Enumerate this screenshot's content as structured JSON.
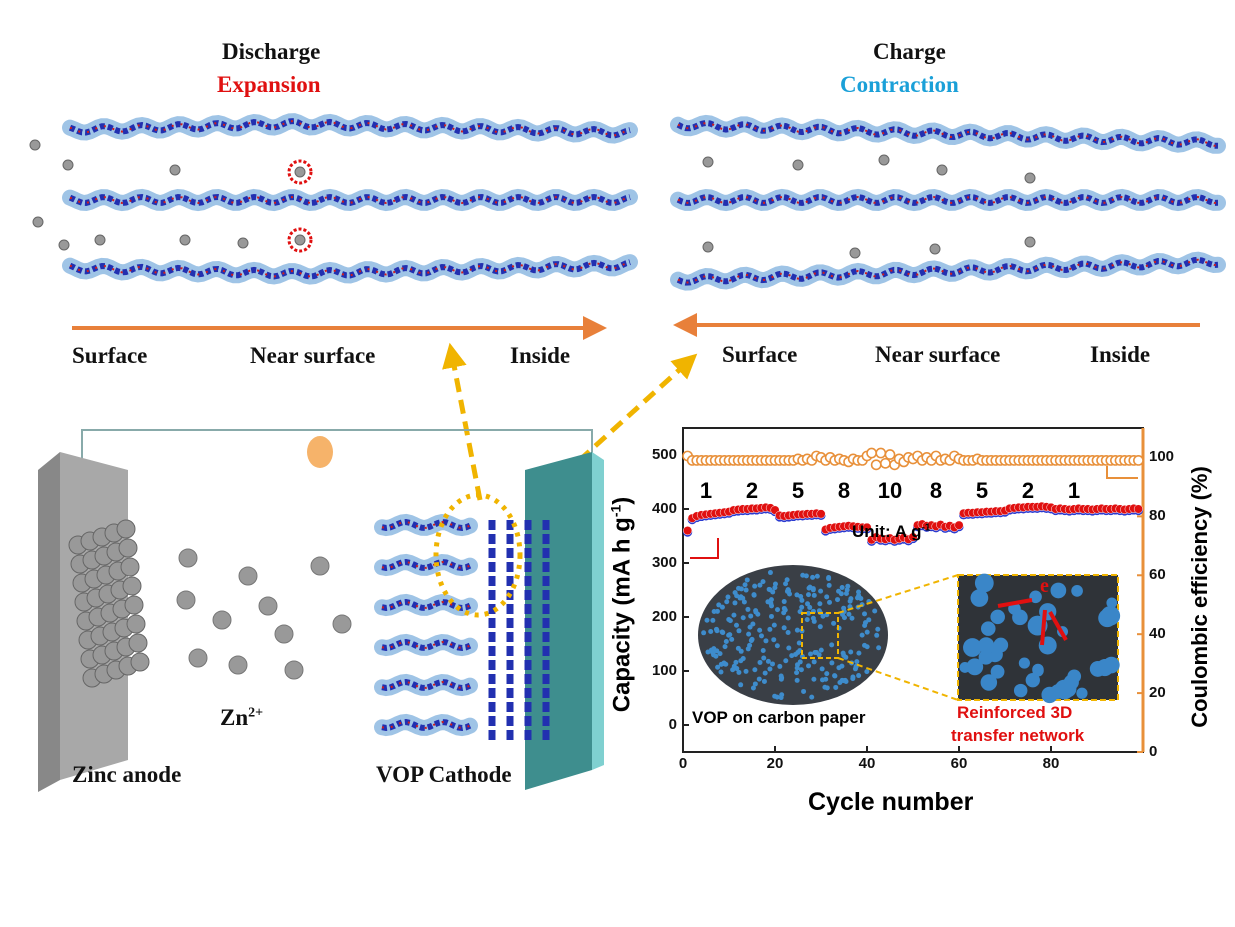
{
  "discharge_panel": {
    "title": "Discharge",
    "subtitle": "Expansion",
    "axis_labels": [
      "Surface",
      "Near surface",
      "Inside"
    ]
  },
  "charge_panel": {
    "title": "Charge",
    "subtitle": "Contraction",
    "axis_labels": [
      "Surface",
      "Near surface",
      "Inside"
    ]
  },
  "battery": {
    "ion_label": "Zn",
    "ion_charge": "2+",
    "anode_label": "Zinc anode",
    "cathode_label": "VOP Cathode"
  },
  "colors": {
    "expansion": "#e01010",
    "contraction": "#1aa0d8",
    "arrow": "#e8803a",
    "dashed": "#f0b400",
    "capacity": "#e01010",
    "efficiency": "#e8903a"
  },
  "chart_data": {
    "type": "scatter",
    "xlabel": "Cycle number",
    "ylabel": "Capacity (mA h g",
    "ylabel_sup": "-1",
    "ylabel_end": ")",
    "y2label": "Coulombic efficiency (%)",
    "xlim": [
      0,
      100
    ],
    "ylim": [
      -50,
      550
    ],
    "y2lim": [
      0,
      110
    ],
    "xticks": [
      0,
      20,
      40,
      60,
      80
    ],
    "yticks": [
      0,
      100,
      200,
      300,
      400,
      500
    ],
    "y2ticks": [
      0,
      20,
      40,
      60,
      80,
      100
    ],
    "rate_labels": [
      "1",
      "2",
      "5",
      "8",
      "10",
      "8",
      "5",
      "2",
      "1"
    ],
    "rate_label_cycles": [
      5,
      15,
      25,
      35,
      45,
      55,
      65,
      75,
      85
    ],
    "unit_label": "Unit: A g",
    "unit_sup": "-1",
    "inset_labels": {
      "left": "VOP on carbon paper",
      "right_line1": "Reinforced 3D",
      "right_line2": "transfer network",
      "electron": "e"
    },
    "series": [
      {
        "name": "Capacity",
        "axis": "left",
        "values": [
          360,
          383,
          387,
          389,
          390,
          391,
          392,
          393,
          394,
          395,
          398,
          399,
          400,
          400,
          401,
          401,
          402,
          403,
          402,
          398,
          388,
          387,
          388,
          389,
          390,
          390,
          391,
          391,
          392,
          391,
          362,
          365,
          366,
          367,
          368,
          369,
          368,
          367,
          366,
          366,
          343,
          348,
          345,
          344,
          346,
          343,
          345,
          347,
          344,
          348,
          370,
          372,
          369,
          370,
          368,
          371,
          367,
          369,
          366,
          370,
          392,
          393,
          393,
          394,
          394,
          395,
          395,
          396,
          396,
          397,
          401,
          402,
          403,
          403,
          404,
          404,
          404,
          405,
          404,
          403,
          400,
          401,
          400,
          399,
          400,
          401,
          400,
          400,
          399,
          400,
          401,
          400,
          400,
          401,
          400,
          399,
          400,
          401,
          400
        ]
      },
      {
        "name": "Coulombic efficiency",
        "axis": "right",
        "values": [
          100.5,
          99,
          99,
          99,
          99,
          99,
          99,
          99,
          99,
          99,
          99,
          99,
          99,
          99,
          99,
          99,
          99,
          99,
          99,
          99,
          99,
          99,
          99,
          99,
          99.5,
          99,
          99.5,
          99,
          100.5,
          100,
          99,
          100,
          99,
          99.5,
          99,
          98.5,
          99.5,
          99,
          99,
          100.5,
          101.5,
          97.5,
          101.5,
          98,
          101,
          97.5,
          99.5,
          98.5,
          100,
          99.5,
          100.5,
          99,
          100,
          99,
          100.5,
          99,
          99.5,
          99,
          100.5,
          99.5,
          99,
          99,
          99,
          99.5,
          99,
          99,
          99,
          99,
          99,
          99,
          99,
          99,
          99,
          99,
          99,
          99,
          99,
          99,
          99,
          99,
          99,
          99,
          99,
          99,
          99,
          99,
          99,
          99,
          99,
          99,
          99,
          99,
          99,
          99,
          99,
          99,
          99,
          99,
          99
        ]
      }
    ]
  }
}
